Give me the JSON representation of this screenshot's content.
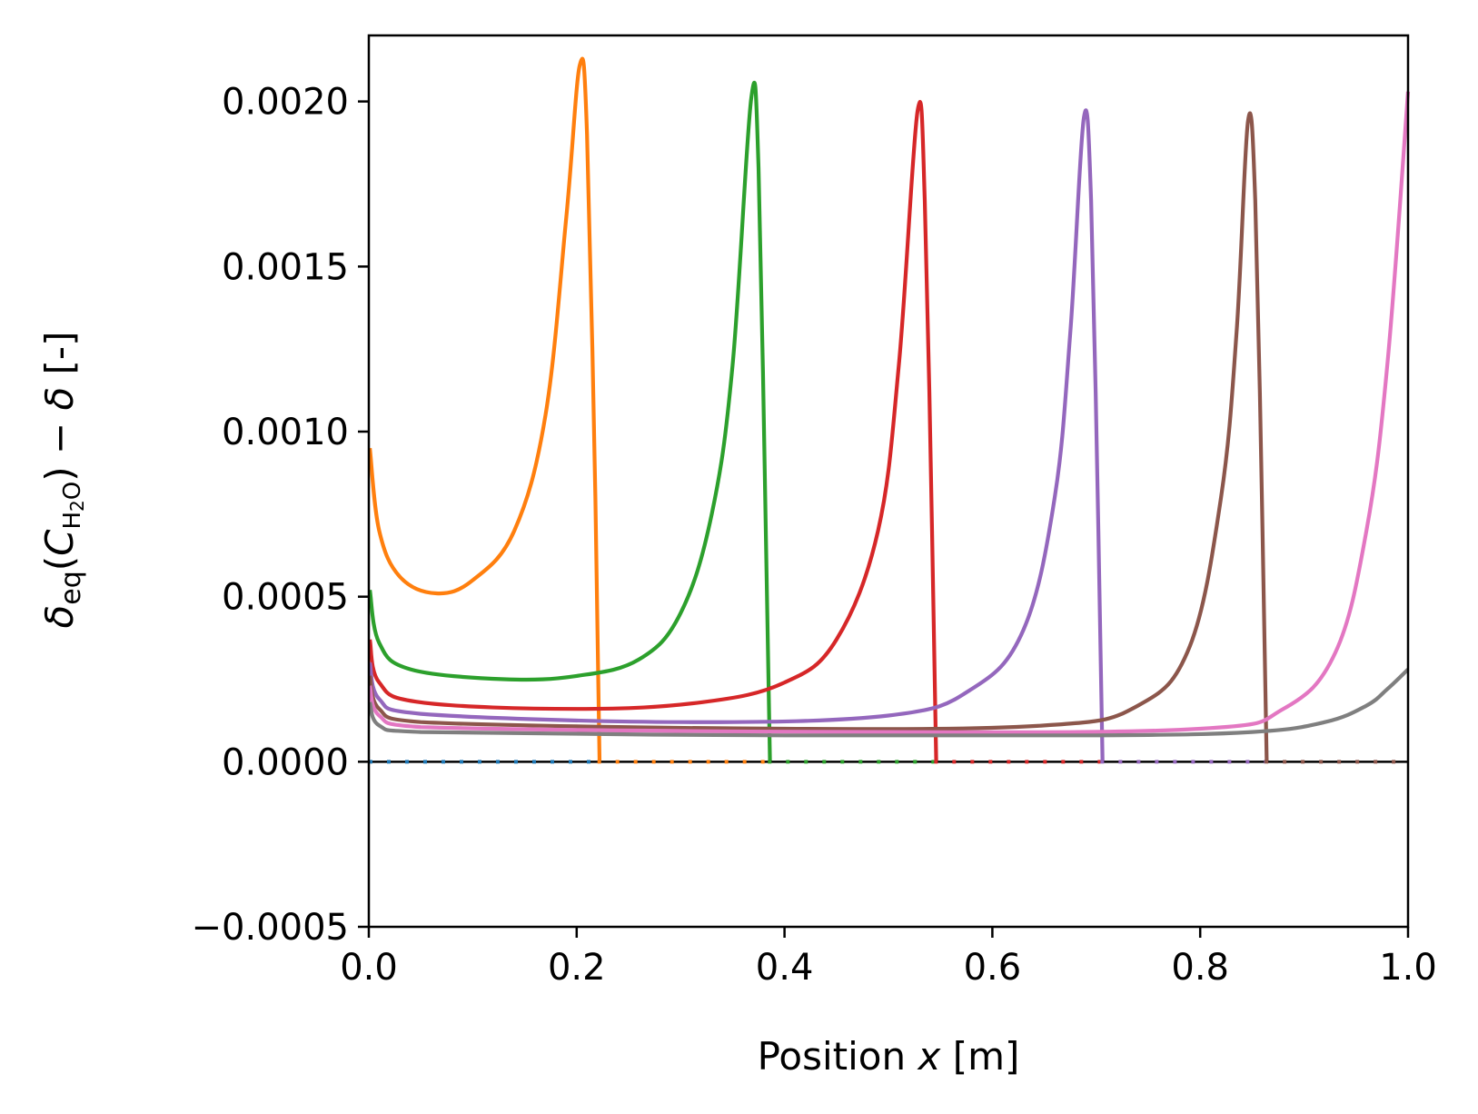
{
  "chart_data": {
    "type": "line",
    "xlabel_prefix": "Position ",
    "xlabel_var": "x",
    "xlabel_suffix": " [m]",
    "ylabel": "δeq(CH2O) − δ [-]",
    "ylabel_parts": {
      "delta": "δ",
      "eq": "eq",
      "open": "(",
      "C": "C",
      "H": "H",
      "two": "2",
      "O": "O",
      "close": ") − ",
      "delta2": "δ",
      "unit": " [-]"
    },
    "xlim": [
      0.0,
      1.0
    ],
    "ylim": [
      -0.0005,
      0.0022
    ],
    "xticks": [
      0.0,
      0.2,
      0.4,
      0.6,
      0.8,
      1.0
    ],
    "xtick_labels": [
      "0.0",
      "0.2",
      "0.4",
      "0.6",
      "0.8",
      "1.0"
    ],
    "yticks": [
      -0.0005,
      0.0,
      0.0005,
      0.001,
      0.0015,
      0.002
    ],
    "ytick_labels": [
      "−0.0005",
      "0.0000",
      "0.0005",
      "0.0010",
      "0.0015",
      "0.0020"
    ],
    "grid": false,
    "legend": "none",
    "reference_line": {
      "y": 0.0,
      "color": "#000000",
      "style": "solid"
    },
    "series": [
      {
        "color": "#1f77b4",
        "peak_x": 0.0,
        "peak_y": 0.0,
        "cut_x": 0.0,
        "points": [
          [
            0.0,
            0.0
          ],
          [
            1.0,
            0.0
          ]
        ]
      },
      {
        "color": "#ff7f0e",
        "peak_x": 0.203,
        "peak_y": 0.00211,
        "cut_x": 0.22,
        "points": [
          [
            0.001,
            0.00095
          ],
          [
            0.01,
            0.0007
          ],
          [
            0.03,
            0.00056
          ],
          [
            0.065,
            0.00051
          ],
          [
            0.1,
            0.00055
          ],
          [
            0.14,
            0.0007
          ],
          [
            0.17,
            0.00105
          ],
          [
            0.19,
            0.00165
          ],
          [
            0.203,
            0.00211
          ],
          [
            0.21,
            0.0019
          ],
          [
            0.218,
            0.0008
          ],
          [
            0.222,
            0.0
          ]
        ]
      },
      {
        "color": "#2ca02c",
        "peak_x": 0.368,
        "peak_y": 0.00201,
        "cut_x": 0.384,
        "points": [
          [
            0.001,
            0.00052
          ],
          [
            0.01,
            0.00036
          ],
          [
            0.04,
            0.00028
          ],
          [
            0.13,
            0.00025
          ],
          [
            0.2,
            0.00026
          ],
          [
            0.26,
            0.00031
          ],
          [
            0.3,
            0.00045
          ],
          [
            0.33,
            0.00075
          ],
          [
            0.35,
            0.0012
          ],
          [
            0.368,
            0.00201
          ],
          [
            0.375,
            0.0018
          ],
          [
            0.382,
            0.0007
          ],
          [
            0.386,
            0.0
          ]
        ]
      },
      {
        "color": "#d62728",
        "peak_x": 0.528,
        "peak_y": 0.00197,
        "cut_x": 0.544,
        "points": [
          [
            0.001,
            0.00037
          ],
          [
            0.01,
            0.00024
          ],
          [
            0.05,
            0.00018
          ],
          [
            0.2,
            0.00016
          ],
          [
            0.32,
            0.00018
          ],
          [
            0.4,
            0.00024
          ],
          [
            0.45,
            0.00037
          ],
          [
            0.49,
            0.0007
          ],
          [
            0.51,
            0.0012
          ],
          [
            0.528,
            0.00197
          ],
          [
            0.535,
            0.0017
          ],
          [
            0.542,
            0.0007
          ],
          [
            0.546,
            0.0
          ]
        ]
      },
      {
        "color": "#9467bd",
        "peak_x": 0.688,
        "peak_y": 0.00195,
        "cut_x": 0.704,
        "points": [
          [
            0.001,
            0.0003
          ],
          [
            0.01,
            0.00019
          ],
          [
            0.05,
            0.000145
          ],
          [
            0.3,
            0.00012
          ],
          [
            0.5,
            0.00014
          ],
          [
            0.58,
            0.00022
          ],
          [
            0.63,
            0.0004
          ],
          [
            0.66,
            0.0008
          ],
          [
            0.675,
            0.0013
          ],
          [
            0.688,
            0.00195
          ],
          [
            0.695,
            0.0017
          ],
          [
            0.702,
            0.0007
          ],
          [
            0.706,
            0.0
          ]
        ]
      },
      {
        "color": "#8c564b",
        "peak_x": 0.846,
        "peak_y": 0.00194,
        "cut_x": 0.862,
        "points": [
          [
            0.001,
            0.00026
          ],
          [
            0.01,
            0.00016
          ],
          [
            0.05,
            0.00012
          ],
          [
            0.4,
            0.0001
          ],
          [
            0.65,
            0.00011
          ],
          [
            0.74,
            0.00017
          ],
          [
            0.79,
            0.00035
          ],
          [
            0.82,
            0.0008
          ],
          [
            0.835,
            0.0013
          ],
          [
            0.846,
            0.00194
          ],
          [
            0.853,
            0.0017
          ],
          [
            0.86,
            0.0007
          ],
          [
            0.864,
            0.0
          ]
        ]
      },
      {
        "color": "#e377c2",
        "peak_x": 1.0,
        "peak_y": 0.00203,
        "cut_x": 1.0,
        "points": [
          [
            0.001,
            0.00023
          ],
          [
            0.01,
            0.00014
          ],
          [
            0.05,
            0.000105
          ],
          [
            0.5,
            9e-05
          ],
          [
            0.8,
            0.0001
          ],
          [
            0.88,
            0.00016
          ],
          [
            0.93,
            0.00033
          ],
          [
            0.96,
            0.0007
          ],
          [
            0.98,
            0.0012
          ],
          [
            1.0,
            0.00203
          ]
        ]
      },
      {
        "color": "#7f7f7f",
        "peak_x": 1.0,
        "peak_y": 0.00028,
        "cut_x": 1.0,
        "points": [
          [
            0.001,
            0.00018
          ],
          [
            0.01,
            0.00011
          ],
          [
            0.05,
            9e-05
          ],
          [
            0.4,
            8e-05
          ],
          [
            0.7,
            8e-05
          ],
          [
            0.85,
            9e-05
          ],
          [
            0.92,
            0.00012
          ],
          [
            0.96,
            0.00017
          ],
          [
            0.98,
            0.00022
          ],
          [
            1.0,
            0.00028
          ]
        ]
      }
    ]
  }
}
